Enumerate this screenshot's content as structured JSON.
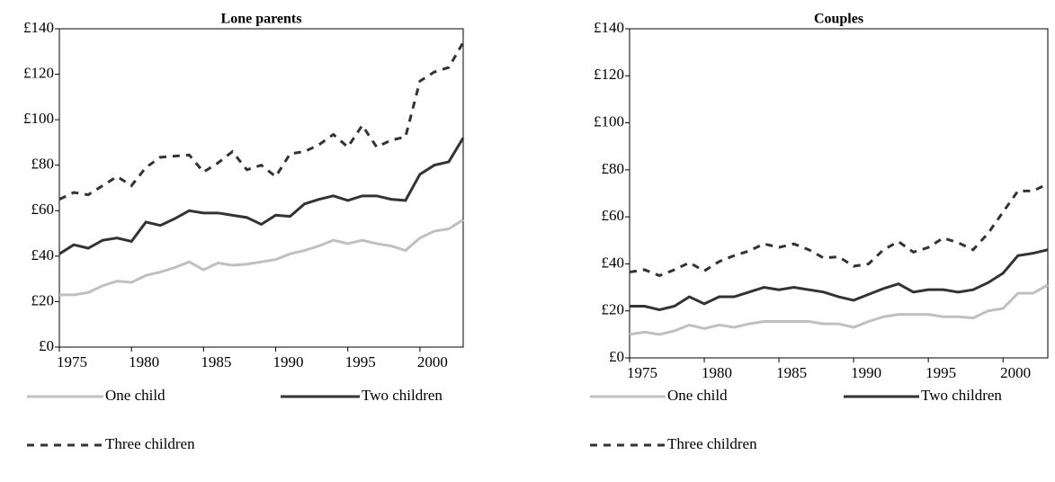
{
  "chart_data": [
    {
      "type": "line",
      "title": "Lone parents",
      "x": [
        1975,
        1976,
        1977,
        1978,
        1979,
        1980,
        1981,
        1982,
        1983,
        1984,
        1985,
        1986,
        1987,
        1988,
        1989,
        1990,
        1991,
        1992,
        1993,
        1994,
        1995,
        1996,
        1997,
        1998,
        1999,
        2000,
        2001,
        2002,
        2003
      ],
      "xlim": [
        1975,
        2003
      ],
      "xticks": [
        1975,
        1980,
        1985,
        1990,
        1995,
        2000
      ],
      "ylim": [
        0,
        140
      ],
      "yticks": [
        {
          "value": 0,
          "label": "£0"
        },
        {
          "value": 20,
          "label": "£20"
        },
        {
          "value": 40,
          "label": "£40"
        },
        {
          "value": 60,
          "label": "£60"
        },
        {
          "value": 80,
          "label": "£80"
        },
        {
          "value": 100,
          "label": "£100"
        },
        {
          "value": 120,
          "label": "£120"
        },
        {
          "value": 140,
          "label": "£140"
        }
      ],
      "series": [
        {
          "name": "One child",
          "color": "#c0c0c0",
          "dash": "solid",
          "values": [
            23,
            23,
            24,
            27,
            29,
            28.5,
            31.5,
            33,
            35,
            37.5,
            34,
            37,
            36,
            36.5,
            37.5,
            38.5,
            41,
            42.5,
            44.5,
            47,
            45.5,
            47,
            45.5,
            44.5,
            42.5,
            48,
            51,
            52,
            56
          ]
        },
        {
          "name": "Two children",
          "color": "#333333",
          "dash": "solid",
          "values": [
            41,
            45,
            43.5,
            47,
            48,
            46.5,
            55,
            53.5,
            56.5,
            60,
            59,
            59,
            58,
            57,
            54,
            58,
            57.5,
            63,
            65,
            66.5,
            64.5,
            66.5,
            66.5,
            65,
            64.5,
            76,
            80,
            81.5,
            92
          ]
        },
        {
          "name": "Three children",
          "color": "#333333",
          "dash": "dashed",
          "values": [
            65,
            68,
            67,
            71,
            75,
            71,
            79,
            83.5,
            84,
            84.5,
            77,
            81,
            86,
            78,
            80,
            75,
            85,
            86,
            89,
            93.5,
            88,
            97.5,
            88,
            91,
            92.5,
            117,
            121,
            123,
            134
          ]
        }
      ]
    },
    {
      "type": "line",
      "title": "Couples",
      "x": [
        1975,
        1976,
        1977,
        1978,
        1979,
        1980,
        1981,
        1982,
        1983,
        1984,
        1985,
        1986,
        1987,
        1988,
        1989,
        1990,
        1991,
        1992,
        1993,
        1994,
        1995,
        1996,
        1997,
        1998,
        1999,
        2000,
        2001,
        2002,
        2003
      ],
      "xlim": [
        1975,
        2003
      ],
      "xticks": [
        1975,
        1980,
        1985,
        1990,
        1995,
        2000
      ],
      "ylim": [
        0,
        140
      ],
      "yticks": [
        {
          "value": 0,
          "label": "£0"
        },
        {
          "value": 20,
          "label": "£20"
        },
        {
          "value": 40,
          "label": "£40"
        },
        {
          "value": 60,
          "label": "£60"
        },
        {
          "value": 80,
          "label": "£80"
        },
        {
          "value": 100,
          "label": "£100"
        },
        {
          "value": 120,
          "label": "£120"
        },
        {
          "value": 140,
          "label": "£140"
        }
      ],
      "series": [
        {
          "name": "One child",
          "color": "#c0c0c0",
          "dash": "solid",
          "values": [
            10,
            11,
            10,
            11.5,
            14,
            12.5,
            14,
            13,
            14.5,
            15.5,
            15.5,
            15.5,
            15.5,
            14.5,
            14.5,
            13,
            15.5,
            17.5,
            18.5,
            18.5,
            18.5,
            17.5,
            17.5,
            17,
            20,
            21,
            27.5,
            27.5,
            31
          ]
        },
        {
          "name": "Two children",
          "color": "#333333",
          "dash": "solid",
          "values": [
            22,
            22,
            20.5,
            22,
            26,
            23,
            26,
            26,
            28,
            30,
            29,
            30,
            29,
            28,
            26,
            24.5,
            27,
            29.5,
            31.5,
            28,
            29,
            29,
            28,
            29,
            32,
            36,
            43.5,
            44.5,
            46
          ]
        },
        {
          "name": "Three children",
          "color": "#333333",
          "dash": "dashed",
          "values": [
            36.5,
            37.5,
            35,
            37.5,
            40.5,
            37,
            41,
            43.5,
            45.5,
            48.5,
            47,
            48.5,
            46,
            42.5,
            43,
            39,
            40,
            46,
            49.5,
            45,
            47,
            51,
            49,
            46,
            53,
            62,
            71,
            71,
            74
          ]
        }
      ]
    }
  ]
}
